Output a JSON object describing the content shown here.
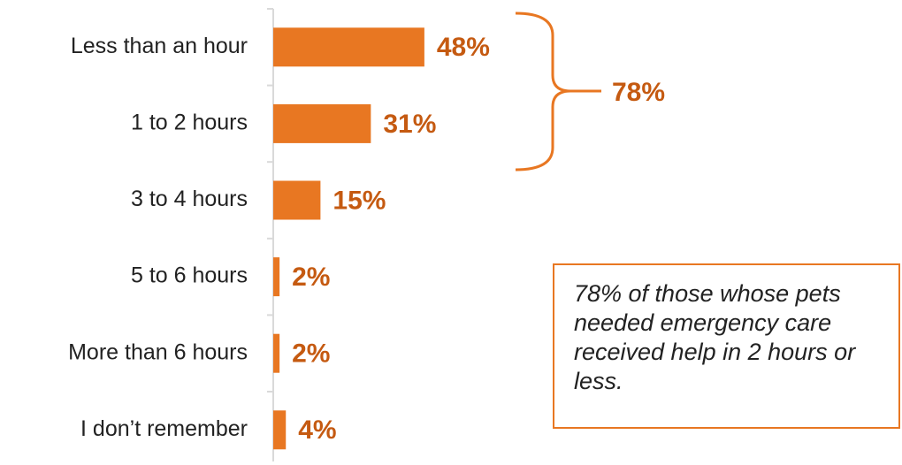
{
  "chart_data": {
    "type": "bar",
    "orientation": "horizontal",
    "categories": [
      "Less than an hour",
      "1 to 2 hours",
      "3 to 4 hours",
      "5 to 6 hours",
      "More than 6 hours",
      "I don’t remember"
    ],
    "values": [
      48,
      31,
      15,
      2,
      2,
      4
    ],
    "value_labels": [
      "48%",
      "31%",
      "15%",
      "2%",
      "2%",
      "4%"
    ],
    "color": "#e87722",
    "annotations": {
      "bracket_label": "78%",
      "callout": "78% of those whose pets needed emergency care received help in 2 hours or less."
    }
  }
}
